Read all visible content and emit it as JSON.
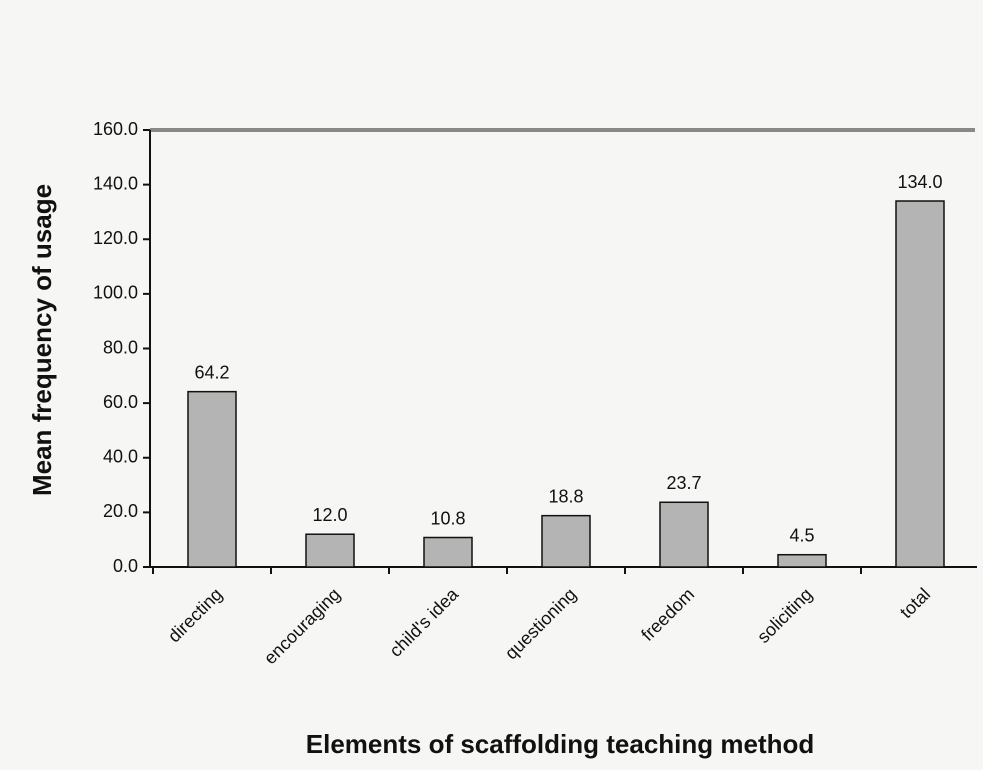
{
  "chart_data": {
    "type": "bar",
    "xlabel": "Elements of scaffolding teaching method",
    "ylabel": "Mean frequency of usage",
    "categories": [
      "directing",
      "encouraging",
      "child's idea",
      "questioning",
      "freedom",
      "soliciting",
      "total"
    ],
    "values": [
      64.2,
      12.0,
      10.8,
      18.8,
      23.7,
      4.5,
      134.0
    ],
    "value_labels": [
      "64.2",
      "12.0",
      "10.8",
      "18.8",
      "23.7",
      "4.5",
      "134.0"
    ],
    "color": "#b4b4b4",
    "ylim": [
      0,
      160
    ],
    "yticks": [
      {
        "value": 0,
        "label": "0.0"
      },
      {
        "value": 20,
        "label": "20.0"
      },
      {
        "value": 40,
        "label": "40.0"
      },
      {
        "value": 60,
        "label": "60.0"
      },
      {
        "value": 80,
        "label": "80.0"
      },
      {
        "value": 100,
        "label": "100.0"
      },
      {
        "value": 120,
        "label": "120.0"
      },
      {
        "value": 140,
        "label": "140.0"
      },
      {
        "value": 160,
        "label": "160.0"
      }
    ]
  }
}
